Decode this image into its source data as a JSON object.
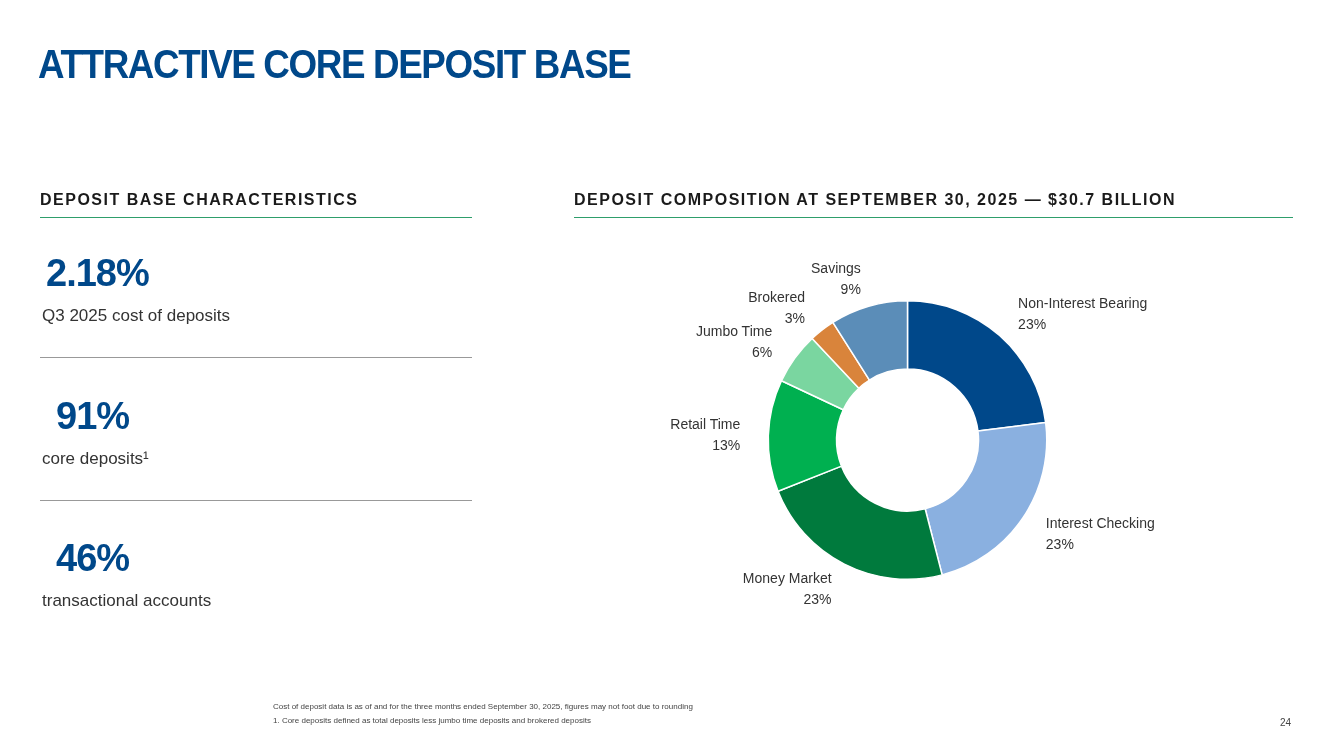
{
  "chart_data": [
    {
      "type": "other",
      "title": "ATTRACTIVE CORE DEPOSIT BASE",
      "subtitle": "DEPOSIT BASE CHARACTERISTICS",
      "annotations": [
        "2.18%",
        "Q3 2025 cost of deposits",
        "91%",
        "core deposits¹",
        "46%",
        "transactional accounts"
      ]
    },
    {
      "type": "donut",
      "title": "DEPOSIT COMPOSITION AT SEPTEMBER 30, 2025 — $30.7 BILLION",
      "categories": [
        "Non-Interest Bearing",
        "Interest Checking",
        "Money Market",
        "Retail Time",
        "Jumbo Time",
        "Brokered",
        "Savings"
      ],
      "values": [
        23,
        23,
        23,
        13,
        6,
        3,
        9
      ],
      "value_labels": [
        "23%",
        "23%",
        "23%",
        "13%",
        "6%",
        "3%",
        "9%"
      ],
      "colors": [
        "#00488a",
        "#8ab0e0",
        "#007a3d",
        "#00b050",
        "#7ad6a0",
        "#d9843b",
        "#5b8db8"
      ],
      "legend": false,
      "annotations": [
        "Cost of deposit data is as of and for the three months ended September 30, 2025, figures may not foot due to rounding",
        "1. Core deposits defined as total deposits less jumbo time deposits and brokered deposits",
        "24"
      ]
    }
  ]
}
